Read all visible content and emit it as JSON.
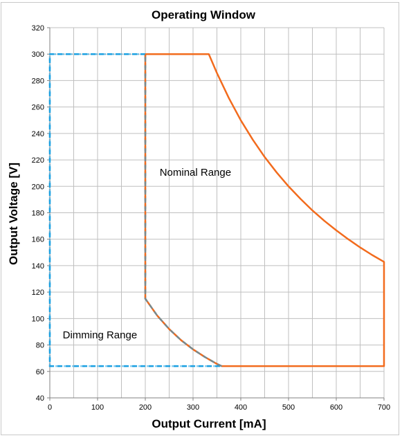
{
  "chart_data": {
    "type": "line",
    "title": "Operating Window",
    "xlabel": "Output Current [mA]",
    "ylabel": "Output Voltage [V]",
    "xlim": [
      0,
      700
    ],
    "ylim": [
      40,
      320
    ],
    "x_ticks": [
      0,
      100,
      200,
      300,
      400,
      500,
      600,
      700
    ],
    "y_ticks": [
      40,
      60,
      80,
      100,
      120,
      140,
      160,
      180,
      200,
      220,
      240,
      260,
      280,
      300,
      320
    ],
    "x_minor_step": 50,
    "grid": true,
    "colors": {
      "nominal": "#F26B1D",
      "dimming": "#1BA1E2",
      "grid": "#bfbfbf"
    },
    "series": [
      {
        "style": "solid",
        "color": "#F26B1D",
        "x": [
          200,
          333,
          350,
          375,
          400,
          425,
          450,
          475,
          500,
          525,
          550,
          575,
          600,
          625,
          650,
          675,
          700,
          700,
          360,
          350,
          325,
          300,
          275,
          250,
          225,
          200,
          200
        ],
        "y": [
          300,
          300,
          285.7,
          266.7,
          250,
          235.3,
          222.2,
          210.5,
          200,
          190.5,
          181.8,
          173.9,
          166.7,
          160,
          153.8,
          148.1,
          142.9,
          64,
          64,
          65.7,
          70.8,
          76.7,
          83.6,
          92,
          102.2,
          115,
          300
        ]
      },
      {
        "style": "dashed",
        "color": "#1BA1E2",
        "x": [
          200,
          0,
          0,
          360,
          350,
          325,
          300,
          275,
          250,
          225,
          200,
          200
        ],
        "y": [
          300,
          300,
          64,
          64,
          65.7,
          70.8,
          76.7,
          83.6,
          92,
          102.2,
          115,
          300
        ]
      }
    ],
    "annotations": [
      {
        "text": "Nominal Range",
        "x": 230,
        "y": 208
      },
      {
        "text": "Dimming Range",
        "x": 27,
        "y": 85
      }
    ]
  }
}
